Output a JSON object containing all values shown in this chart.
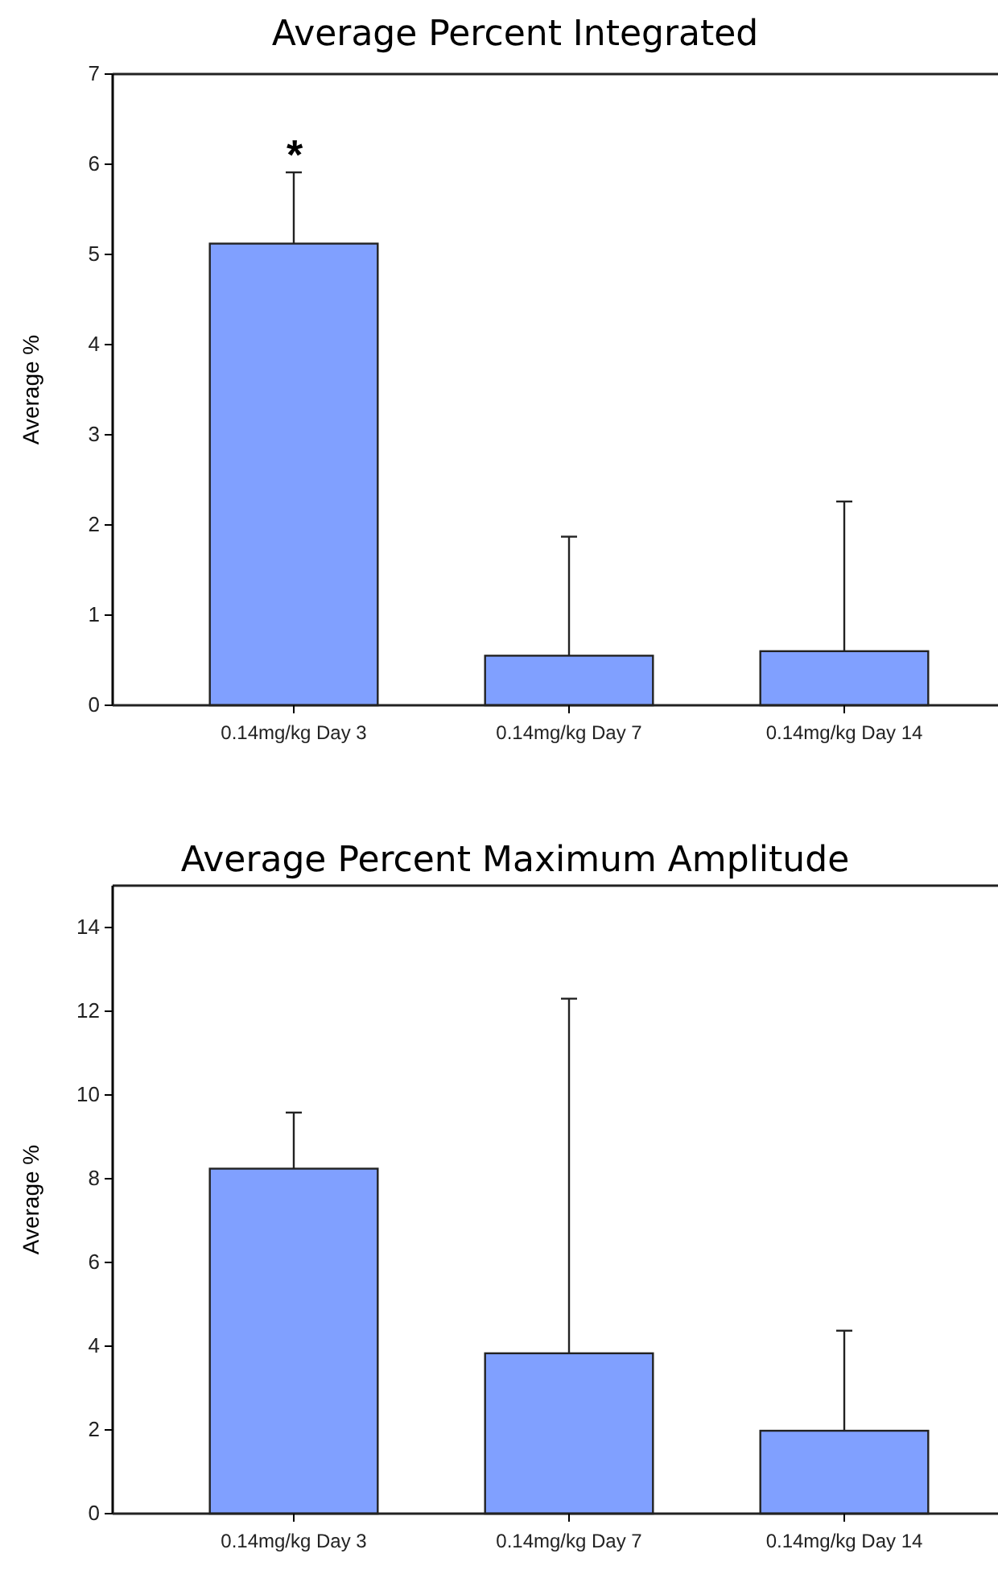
{
  "chart_data": [
    {
      "type": "bar",
      "title": "Average Percent Integrated",
      "ylabel": "Average %",
      "categories": [
        "0.14mg/kg Day 3",
        "0.14mg/kg Day 7",
        "0.14mg/kg Day 14"
      ],
      "values": [
        5.12,
        0.55,
        0.6
      ],
      "errors": [
        [
          5.12,
          5.91
        ],
        [
          0.55,
          1.87
        ],
        [
          0.6,
          2.26
        ]
      ],
      "color": "#80a0ff",
      "ylim": [
        0,
        7
      ],
      "yticks": [
        0,
        1,
        2,
        3,
        4,
        5,
        6,
        7
      ],
      "grid": false,
      "annotations": [
        "*"
      ]
    },
    {
      "type": "bar",
      "title": "Average Percent Maximum Amplitude",
      "ylabel": "Average %",
      "categories": [
        "0.14mg/kg Day 3",
        "0.14mg/kg Day 7",
        "0.14mg/kg Day 14"
      ],
      "values": [
        8.24,
        3.83,
        1.98
      ],
      "errors": [
        [
          8.24,
          9.58
        ],
        [
          3.83,
          12.3
        ],
        [
          1.98,
          4.37
        ]
      ],
      "color": "#80a0ff",
      "ylim": [
        0,
        15
      ],
      "yticks": [
        0,
        2,
        4,
        6,
        8,
        10,
        12,
        14
      ],
      "grid": false
    }
  ]
}
